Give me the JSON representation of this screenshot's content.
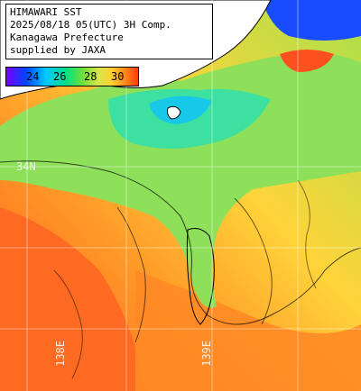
{
  "title": {
    "line1": "HIMAWARI SST",
    "line2": "2025/08/18 05(UTC) 3H Comp.",
    "line3": "Kanagawa Prefecture",
    "line4": "supplied by JAXA"
  },
  "scale": {
    "ticks": [
      "24",
      "26",
      "28",
      "30"
    ],
    "colors": [
      "#7a00ff",
      "#0044ff",
      "#00c8ff",
      "#00e08a",
      "#6ee03a",
      "#d8e64a",
      "#ffd030",
      "#ff8a1a",
      "#ff3a10"
    ]
  },
  "graticule": {
    "lat_label": "34N",
    "lon_label_left": "138E",
    "lon_label_right": "139E"
  },
  "colors": {
    "land": "#ffffff",
    "coast": "#000000",
    "grid": "#ffffff"
  }
}
